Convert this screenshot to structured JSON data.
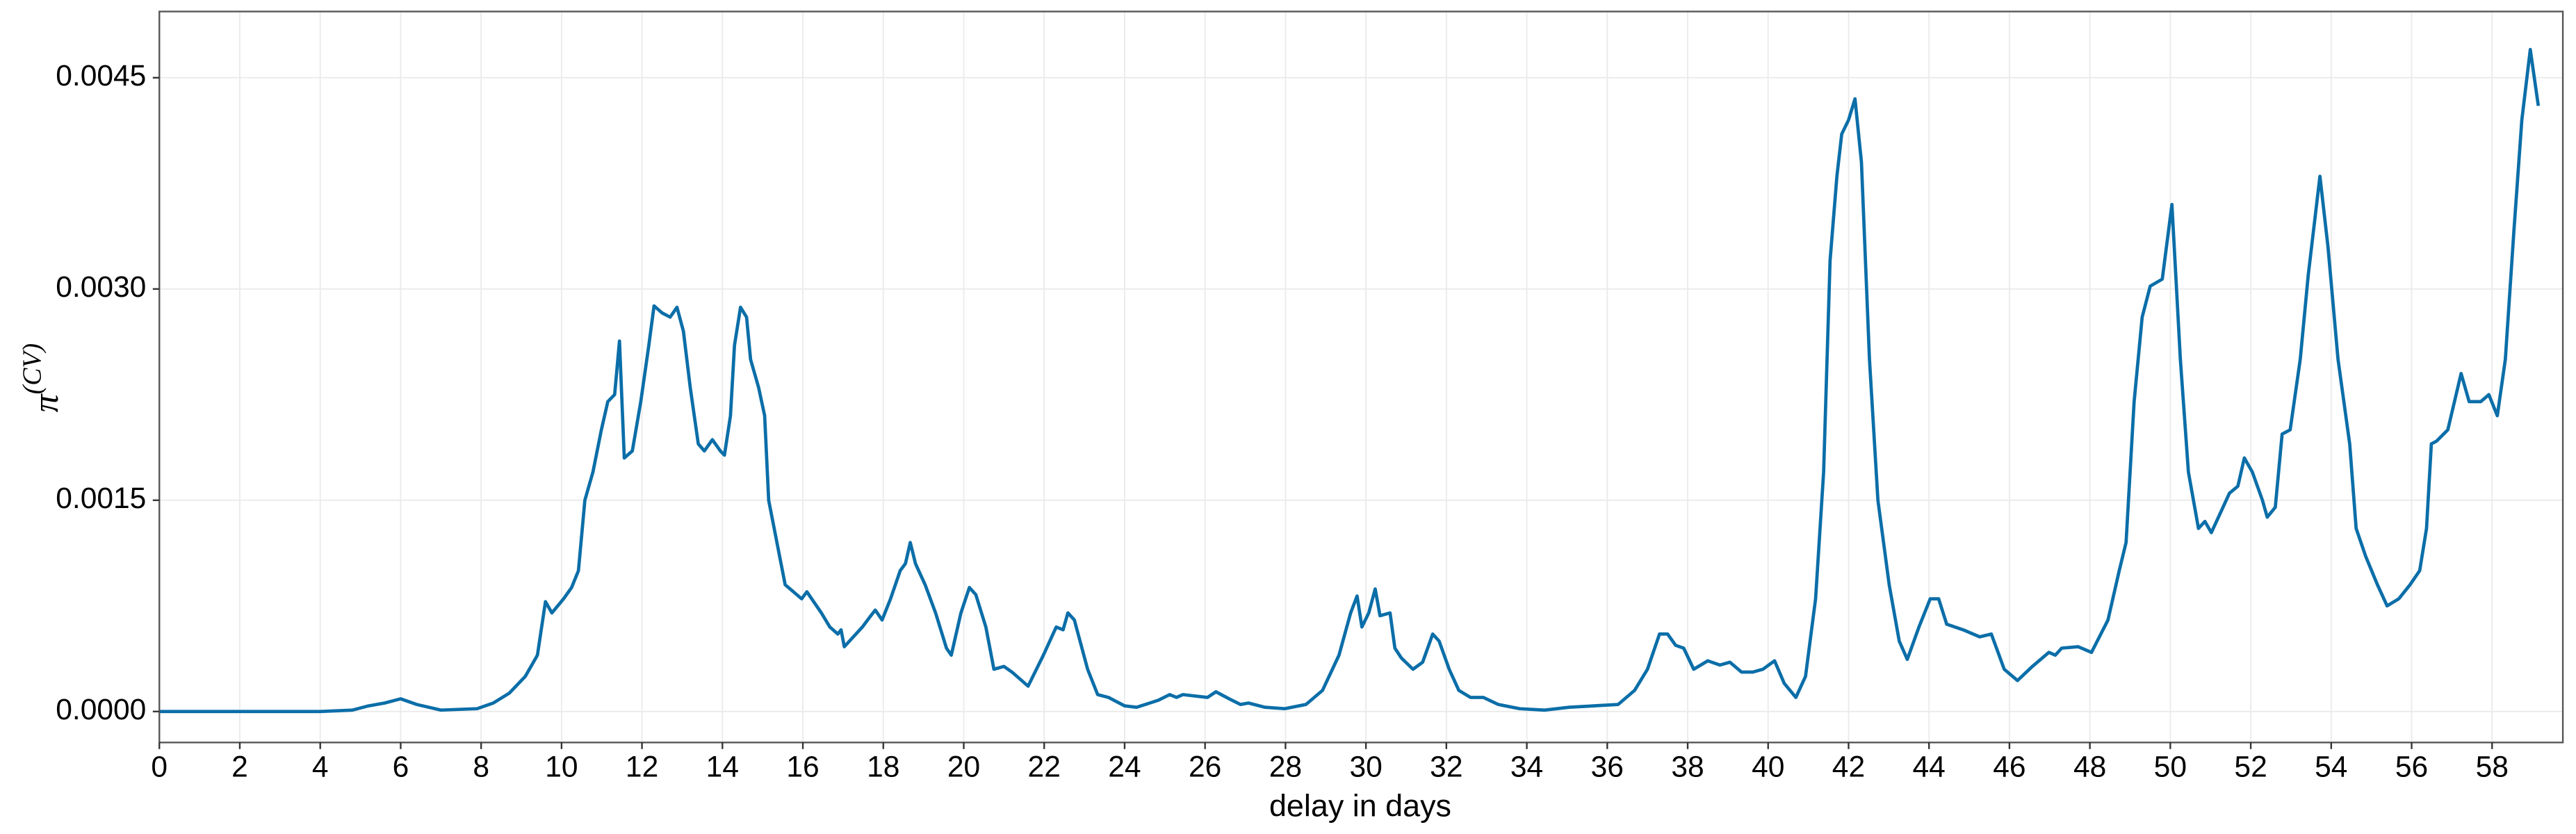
{
  "chart_data": {
    "type": "line",
    "xlabel": "delay in days",
    "ylabel": {
      "base": "π",
      "superscript": "(CV)"
    },
    "xlim": [
      0,
      59.76
    ],
    "ylim": [
      -0.00022,
      0.00497
    ],
    "xticks": [
      0,
      2,
      4,
      6,
      8,
      10,
      12,
      14,
      16,
      18,
      20,
      22,
      24,
      26,
      28,
      30,
      32,
      34,
      36,
      38,
      40,
      42,
      44,
      46,
      48,
      50,
      52,
      54,
      56,
      58
    ],
    "yticks": [
      {
        "value": 0,
        "label": "0.0000"
      },
      0.0015,
      {
        "value": 0.003,
        "label": "0.0030"
      },
      0.0045
    ],
    "grid": true,
    "series": [
      {
        "color": "#0b6ea8",
        "x": [
          0,
          2,
          4,
          4.8,
          5.2,
          5.6,
          6.0,
          6.4,
          7.0,
          7.9,
          8.3,
          8.7,
          9.1,
          9.4,
          9.6,
          9.76,
          10.05,
          10.25,
          10.42,
          10.58,
          10.78,
          10.99,
          11.15,
          11.32,
          11.44,
          11.56,
          11.76,
          11.97,
          12.17,
          12.3,
          12.5,
          12.7,
          12.87,
          13.03,
          13.2,
          13.4,
          13.55,
          13.75,
          13.95,
          14.05,
          14.2,
          14.3,
          14.45,
          14.6,
          14.7,
          14.9,
          15.05,
          15.15,
          15.56,
          15.97,
          16.1,
          16.46,
          16.67,
          16.87,
          16.95,
          17.03,
          17.48,
          17.69,
          17.8,
          17.97,
          18.18,
          18.42,
          18.55,
          18.67,
          18.8,
          19.04,
          19.3,
          19.57,
          19.69,
          19.93,
          20.14,
          20.3,
          20.55,
          20.75,
          21.0,
          21.2,
          21.6,
          21.98,
          22.3,
          22.47,
          22.59,
          22.75,
          23.08,
          23.33,
          23.6,
          24.0,
          24.3,
          24.84,
          25.12,
          25.29,
          25.45,
          26.06,
          26.27,
          26.6,
          26.88,
          27.08,
          27.49,
          27.98,
          28.51,
          28.92,
          29.33,
          29.62,
          29.78,
          29.9,
          30.07,
          30.23,
          30.35,
          30.6,
          30.72,
          30.88,
          31.17,
          31.41,
          31.66,
          31.82,
          32.07,
          32.31,
          32.6,
          32.92,
          33.29,
          33.82,
          34.44,
          35.05,
          35.66,
          36.27,
          36.68,
          37.0,
          37.3,
          37.5,
          37.7,
          37.9,
          38.15,
          38.5,
          38.8,
          39.05,
          39.34,
          39.62,
          39.87,
          40.16,
          40.4,
          40.69,
          40.93,
          41.18,
          41.38,
          41.54,
          41.71,
          41.83,
          42.0,
          42.16,
          42.32,
          42.52,
          42.73,
          43.01,
          43.26,
          43.46,
          43.75,
          44.03,
          44.24,
          44.44,
          44.85,
          45.26,
          45.55,
          45.87,
          46.2,
          46.57,
          46.98,
          47.14,
          47.3,
          47.71,
          48.04,
          48.45,
          48.73,
          48.9,
          49.1,
          49.3,
          49.5,
          49.8,
          50.04,
          50.25,
          50.45,
          50.7,
          50.86,
          51.02,
          51.23,
          51.47,
          51.68,
          51.84,
          52.04,
          52.29,
          52.41,
          52.61,
          52.78,
          52.98,
          53.23,
          53.43,
          53.72,
          53.92,
          54.17,
          54.46,
          54.62,
          54.86,
          55.15,
          55.39,
          55.68,
          55.96,
          56.2,
          56.37,
          56.49,
          56.62,
          56.9,
          57.23,
          57.43,
          57.72,
          57.92,
          58.13,
          58.33,
          58.54,
          58.74,
          58.95,
          59.15
        ],
        "values": [
          0,
          0,
          0,
          1e-05,
          4e-05,
          6e-05,
          9e-05,
          5e-05,
          1e-05,
          2e-05,
          6e-05,
          0.00013,
          0.00025,
          0.0004,
          0.00078,
          0.0007,
          0.0008,
          0.00088,
          0.001,
          0.0015,
          0.0017,
          0.002,
          0.0022,
          0.00225,
          0.00263,
          0.0018,
          0.00185,
          0.0022,
          0.0026,
          0.00288,
          0.00283,
          0.0028,
          0.00287,
          0.0027,
          0.0023,
          0.0019,
          0.00185,
          0.00193,
          0.00185,
          0.00182,
          0.0021,
          0.0026,
          0.00287,
          0.0028,
          0.0025,
          0.0023,
          0.0021,
          0.0015,
          0.0009,
          0.0008,
          0.00085,
          0.0007,
          0.0006,
          0.00055,
          0.00058,
          0.00046,
          0.0006,
          0.00068,
          0.00072,
          0.00065,
          0.0008,
          0.001,
          0.00105,
          0.0012,
          0.00105,
          0.0009,
          0.0007,
          0.00045,
          0.0004,
          0.0007,
          0.00088,
          0.00083,
          0.0006,
          0.0003,
          0.00032,
          0.00028,
          0.00018,
          0.0004,
          0.0006,
          0.00058,
          0.0007,
          0.00065,
          0.0003,
          0.00012,
          0.0001,
          4e-05,
          3e-05,
          8e-05,
          0.00012,
          0.0001,
          0.00012,
          0.0001,
          0.00014,
          9e-05,
          5e-05,
          6e-05,
          3e-05,
          2e-05,
          5e-05,
          0.00015,
          0.0004,
          0.0007,
          0.00082,
          0.0006,
          0.0007,
          0.00087,
          0.00068,
          0.0007,
          0.00045,
          0.00038,
          0.0003,
          0.00035,
          0.00055,
          0.0005,
          0.0003,
          0.00015,
          0.0001,
          0.0001,
          5e-05,
          2e-05,
          1e-05,
          3e-05,
          4e-05,
          5e-05,
          0.00015,
          0.0003,
          0.00055,
          0.00055,
          0.00047,
          0.00045,
          0.0003,
          0.00036,
          0.00033,
          0.00035,
          0.00028,
          0.00028,
          0.0003,
          0.00036,
          0.0002,
          0.0001,
          0.00025,
          0.0008,
          0.0017,
          0.0032,
          0.0038,
          0.0041,
          0.0042,
          0.00435,
          0.0039,
          0.0025,
          0.0015,
          0.0009,
          0.0005,
          0.00037,
          0.0006,
          0.0008,
          0.0008,
          0.00062,
          0.00058,
          0.00053,
          0.00055,
          0.0003,
          0.00022,
          0.00032,
          0.00042,
          0.0004,
          0.00045,
          0.00046,
          0.00042,
          0.00065,
          0.001,
          0.0012,
          0.0022,
          0.0028,
          0.00302,
          0.00307,
          0.0036,
          0.0025,
          0.0017,
          0.0013,
          0.00135,
          0.00127,
          0.0014,
          0.00155,
          0.0016,
          0.0018,
          0.0017,
          0.0015,
          0.00138,
          0.00145,
          0.00197,
          0.002,
          0.0025,
          0.0031,
          0.0038,
          0.0033,
          0.0025,
          0.0019,
          0.0013,
          0.0011,
          0.0009,
          0.00075,
          0.0008,
          0.0009,
          0.001,
          0.0013,
          0.0019,
          0.00192,
          0.002,
          0.0024,
          0.0022,
          0.0022,
          0.00225,
          0.0021,
          0.0025,
          0.0034,
          0.0042,
          0.0047,
          0.0043
        ]
      }
    ]
  }
}
